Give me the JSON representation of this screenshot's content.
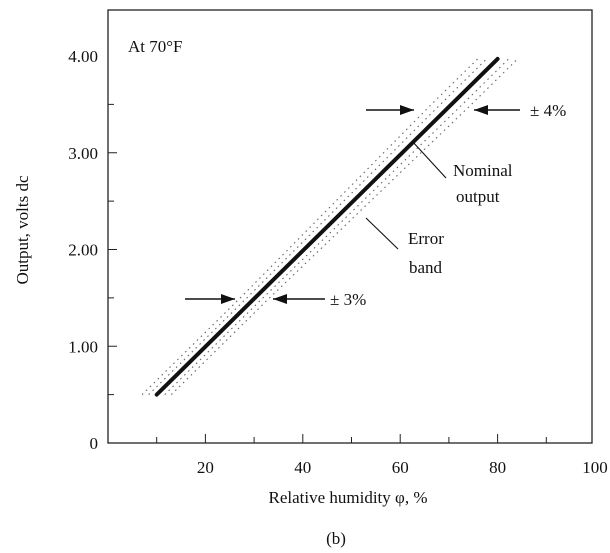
{
  "chart_data": {
    "type": "line",
    "condition": "At 70°F",
    "xlabel": "Relative humidity φ, %",
    "ylabel": "Output, volts dc",
    "caption": "(b)",
    "xlim": [
      0,
      100
    ],
    "ylim": [
      0,
      4.0
    ],
    "x_ticks": [
      20,
      40,
      60,
      80,
      100
    ],
    "x_tick_labels": [
      "20",
      "40",
      "60",
      "80",
      "100"
    ],
    "y_ticks": [
      0,
      1.0,
      2.0,
      3.0,
      4.0
    ],
    "y_tick_labels": [
      "0",
      "1.00",
      "2.00",
      "3.00",
      "4.00"
    ],
    "series": [
      {
        "x": [
          10,
          80
        ],
        "y": [
          0.5,
          3.97
        ]
      }
    ],
    "error_band": {
      "low_end_x": 30,
      "low_end_percent": 3,
      "high_end_x": 70,
      "high_end_percent": 4
    },
    "annotations": {
      "pm3": "± 3%",
      "pm4": "± 4%",
      "nominal_line1": "Nominal",
      "nominal_line2": "output",
      "error_line1": "Error",
      "error_line2": "band"
    },
    "grid": false
  }
}
